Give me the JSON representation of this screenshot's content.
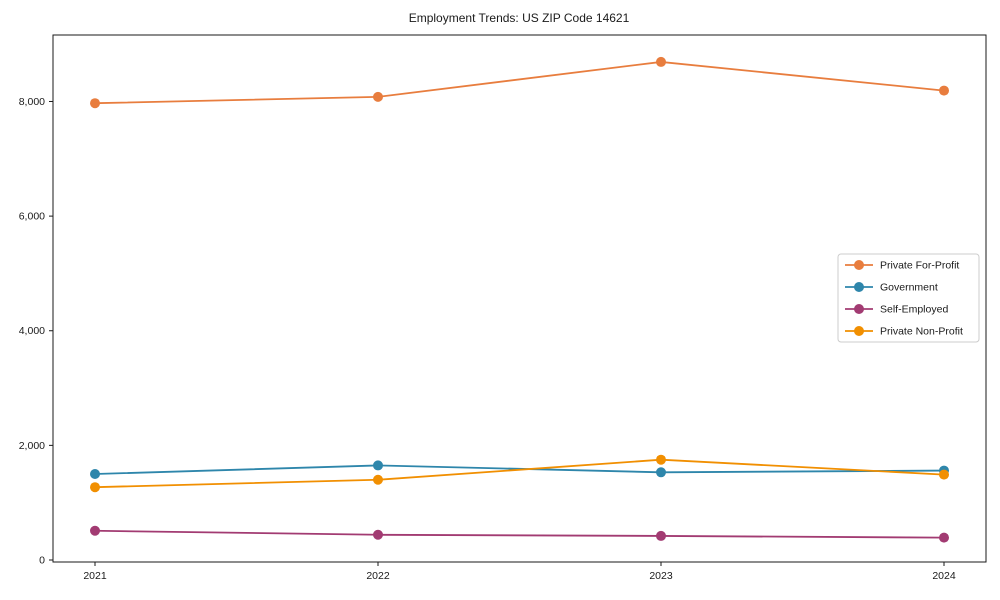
{
  "chart_data": {
    "type": "line",
    "title": "Employment Trends: US ZIP Code 14621",
    "xlabel": "",
    "ylabel": "",
    "categories": [
      "2021",
      "2022",
      "2023",
      "2024"
    ],
    "series": [
      {
        "name": "Private For-Profit",
        "color": "#E87D3E",
        "values": [
          7970,
          8080,
          8690,
          8190
        ]
      },
      {
        "name": "Government",
        "color": "#2E86AB",
        "values": [
          1500,
          1650,
          1530,
          1560
        ]
      },
      {
        "name": "Self-Employed",
        "color": "#A23B72",
        "values": [
          510,
          440,
          420,
          390
        ]
      },
      {
        "name": "Private Non-Profit",
        "color": "#F18F01",
        "values": [
          1270,
          1400,
          1750,
          1490
        ]
      }
    ],
    "y_ticks": [
      0,
      2000,
      4000,
      6000,
      8000
    ],
    "y_tick_labels": [
      "0",
      "2,000",
      "4,000",
      "6,000",
      "8,000"
    ],
    "ylim": [
      -35,
      9160
    ],
    "grid": false,
    "legend_position": "center-right",
    "marker": "circle",
    "plot_border": true,
    "colors": {
      "spine": "#1a1a1a",
      "text": "#1a1a1a",
      "legend_border": "#cccccc",
      "background": "#ffffff"
    }
  }
}
